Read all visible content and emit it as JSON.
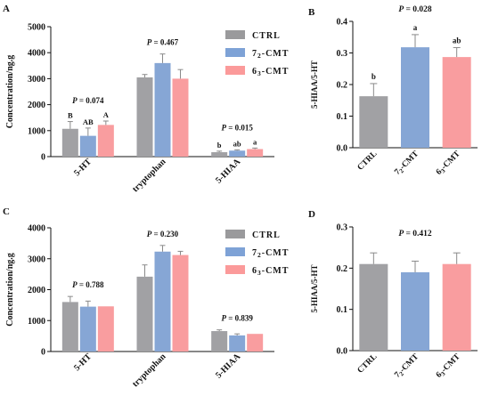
{
  "colors": {
    "ctrl": "#a1a1a4",
    "cmt72": "#86a6d5",
    "cmt63": "#f99d9f",
    "legend_ctrl": "#9a9a9c",
    "legend_cmt72": "#7ea2d6",
    "legend_cmt63": "#fb9a9a",
    "error_bar": "#8a8a8a"
  },
  "legend_top": {
    "entries": [
      {
        "key": "ctrl",
        "label": "CTRL"
      },
      {
        "key": "cmt72",
        "label": "7₂-CMT"
      },
      {
        "key": "cmt63",
        "label": "6₃-CMT"
      }
    ]
  },
  "legend_bottom": {
    "entries": [
      {
        "key": "ctrl",
        "label": "CTRL"
      },
      {
        "key": "cmt72",
        "label": "7₂-CMT"
      },
      {
        "key": "cmt63",
        "label": "6₃-CMT"
      }
    ]
  },
  "chart_data": [
    {
      "id": "A",
      "panel_label": "A",
      "type": "bar",
      "ylabel": "Concentration/ng.g",
      "ylim": [
        0,
        5000
      ],
      "yticks": [
        0,
        1000,
        2000,
        3000,
        4000,
        5000
      ],
      "categories": [
        "5-HT",
        "tryptophan",
        "5-HIAA"
      ],
      "series": [
        {
          "key": "ctrl",
          "name": "CTRL",
          "values": [
            1070,
            3050,
            170
          ],
          "errors": [
            280,
            110,
            40
          ]
        },
        {
          "key": "cmt72",
          "name": "7₂-CMT",
          "values": [
            800,
            3600,
            230
          ],
          "errors": [
            300,
            350,
            30
          ]
        },
        {
          "key": "cmt63",
          "name": "6₃-CMT",
          "values": [
            1220,
            3000,
            290
          ],
          "errors": [
            150,
            350,
            40
          ]
        }
      ],
      "annotations": [
        {
          "category": "5-HT",
          "p": "0.074",
          "letters": [
            "B",
            "AB",
            "A"
          ]
        },
        {
          "category": "tryptophan",
          "p": "0.467",
          "letters": [
            "",
            "",
            ""
          ]
        },
        {
          "category": "5-HIAA",
          "p": "0.015",
          "letters": [
            "b",
            "ab",
            "a"
          ]
        }
      ]
    },
    {
      "id": "B",
      "panel_label": "B",
      "type": "bar",
      "ylabel": "5-HIAA/5-HT",
      "ylim": [
        0,
        0.4
      ],
      "yticks": [
        0.0,
        0.1,
        0.2,
        0.3,
        0.4
      ],
      "ytick_labels": [
        "0.0",
        "0.1",
        "0.2",
        "0.3",
        "0.4"
      ],
      "p": "0.028",
      "categories": [
        "CTRL",
        "7₂-CMT",
        "6₃-CMT"
      ],
      "category_keys": [
        "ctrl",
        "cmt72",
        "cmt63"
      ],
      "values": [
        0.163,
        0.318,
        0.287
      ],
      "errors": [
        0.04,
        0.04,
        0.03
      ],
      "letters": [
        "b",
        "a",
        "ab"
      ]
    },
    {
      "id": "C",
      "panel_label": "C",
      "type": "bar",
      "ylabel": "Concentration/ng.g",
      "ylim": [
        0,
        4000
      ],
      "yticks": [
        0,
        1000,
        2000,
        3000,
        4000
      ],
      "categories": [
        "5-HT",
        "tryptophan",
        "5-HIAA"
      ],
      "series": [
        {
          "key": "ctrl",
          "name": "CTRL",
          "values": [
            1600,
            2420,
            660
          ],
          "errors": [
            180,
            380,
            40
          ]
        },
        {
          "key": "cmt72",
          "name": "7₂-CMT",
          "values": [
            1450,
            3230,
            520
          ],
          "errors": [
            180,
            200,
            50
          ]
        },
        {
          "key": "cmt63",
          "name": "6₃-CMT",
          "values": [
            1460,
            3120,
            570
          ],
          "errors": [
            0,
            120,
            0
          ]
        }
      ],
      "annotations": [
        {
          "category": "5-HT",
          "p": "0.788",
          "letters": [
            "",
            "",
            ""
          ]
        },
        {
          "category": "tryptophan",
          "p": "0.230",
          "letters": [
            "",
            "",
            ""
          ]
        },
        {
          "category": "5-HIAA",
          "p": "0.839",
          "letters": [
            "",
            "",
            ""
          ]
        }
      ]
    },
    {
      "id": "D",
      "panel_label": "D",
      "type": "bar",
      "ylabel": "5-HIAA/5-HT",
      "ylim": [
        0,
        0.3
      ],
      "yticks": [
        0.0,
        0.1,
        0.2,
        0.3
      ],
      "ytick_labels": [
        "0.0",
        "0.1",
        "0.2",
        "0.3"
      ],
      "p": "0.412",
      "categories": [
        "CTRL",
        "7₂-CMT",
        "6₃-CMT"
      ],
      "category_keys": [
        "ctrl",
        "cmt72",
        "cmt63"
      ],
      "values": [
        0.21,
        0.19,
        0.21
      ],
      "errors": [
        0.027,
        0.027,
        0.027
      ],
      "letters": [
        "",
        "",
        ""
      ]
    }
  ]
}
